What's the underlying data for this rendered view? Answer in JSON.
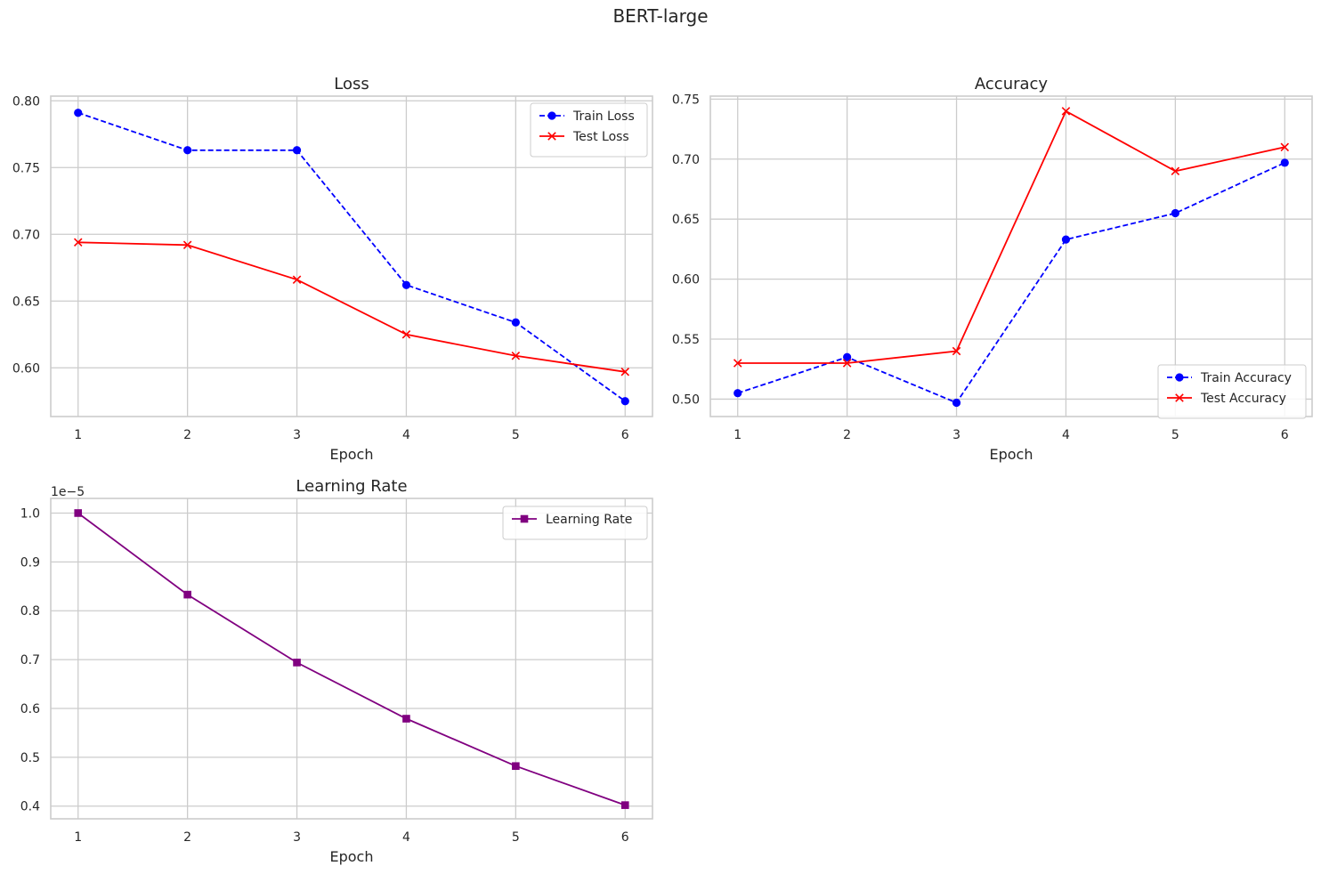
{
  "figure": {
    "suptitle": "BERT-large"
  },
  "colors": {
    "train": "#0000ff",
    "test": "#ff0000",
    "lr": "#800080"
  },
  "chart_data": [
    {
      "type": "line",
      "title": "Loss",
      "xlabel": "Epoch",
      "ylabel": "",
      "x": [
        1,
        2,
        3,
        4,
        5,
        6
      ],
      "xticks": [
        "1",
        "2",
        "3",
        "4",
        "5",
        "6"
      ],
      "xlim": [
        0.75,
        6.25
      ],
      "ylim": [
        0.5635,
        0.8035
      ],
      "yticks": [
        0.6,
        0.65,
        0.7,
        0.75,
        0.8
      ],
      "ytick_labels": [
        "0.60",
        "0.65",
        "0.70",
        "0.75",
        "0.80"
      ],
      "grid": true,
      "legend_position": "upper right",
      "series": [
        {
          "name": "Train Loss",
          "values": [
            0.791,
            0.763,
            0.763,
            0.662,
            0.634,
            0.575
          ],
          "color": "#0000ff",
          "linestyle": "dashed",
          "marker": "circle"
        },
        {
          "name": "Test Loss",
          "values": [
            0.694,
            0.692,
            0.666,
            0.625,
            0.609,
            0.597
          ],
          "color": "#ff0000",
          "linestyle": "solid",
          "marker": "x"
        }
      ]
    },
    {
      "type": "line",
      "title": "Accuracy",
      "xlabel": "Epoch",
      "ylabel": "",
      "x": [
        1,
        2,
        3,
        4,
        5,
        6
      ],
      "xticks": [
        "1",
        "2",
        "3",
        "4",
        "5",
        "6"
      ],
      "xlim": [
        0.75,
        6.25
      ],
      "ylim": [
        0.4855,
        0.7525
      ],
      "yticks": [
        0.5,
        0.55,
        0.6,
        0.65,
        0.7,
        0.75
      ],
      "ytick_labels": [
        "0.50",
        "0.55",
        "0.60",
        "0.65",
        "0.70",
        "0.75"
      ],
      "grid": true,
      "legend_position": "lower right",
      "series": [
        {
          "name": "Train Accuracy",
          "values": [
            0.505,
            0.535,
            0.497,
            0.633,
            0.655,
            0.697
          ],
          "color": "#0000ff",
          "linestyle": "dashed",
          "marker": "circle"
        },
        {
          "name": "Test Accuracy",
          "values": [
            0.53,
            0.53,
            0.54,
            0.74,
            0.69,
            0.71
          ],
          "color": "#ff0000",
          "linestyle": "solid",
          "marker": "x"
        }
      ]
    },
    {
      "type": "line",
      "title": "Learning Rate",
      "xlabel": "Epoch",
      "ylabel": "",
      "x": [
        1,
        2,
        3,
        4,
        5,
        6
      ],
      "xticks": [
        "1",
        "2",
        "3",
        "4",
        "5",
        "6"
      ],
      "xlim": [
        0.75,
        6.25
      ],
      "ylim": [
        3.74e-06,
        1.03e-05
      ],
      "yticks": [
        4e-06,
        5e-06,
        6e-06,
        7e-06,
        8e-06,
        9e-06,
        1e-05
      ],
      "ytick_labels": [
        "0.4",
        "0.5",
        "0.6",
        "0.7",
        "0.8",
        "0.9",
        "1.0"
      ],
      "offset_text": "1e−5",
      "grid": true,
      "legend_position": "upper right",
      "series": [
        {
          "name": "Learning Rate",
          "values": [
            1e-05,
            8.33e-06,
            6.94e-06,
            5.79e-06,
            4.82e-06,
            4.02e-06
          ],
          "color": "#800080",
          "linestyle": "solid",
          "marker": "square"
        }
      ]
    }
  ]
}
